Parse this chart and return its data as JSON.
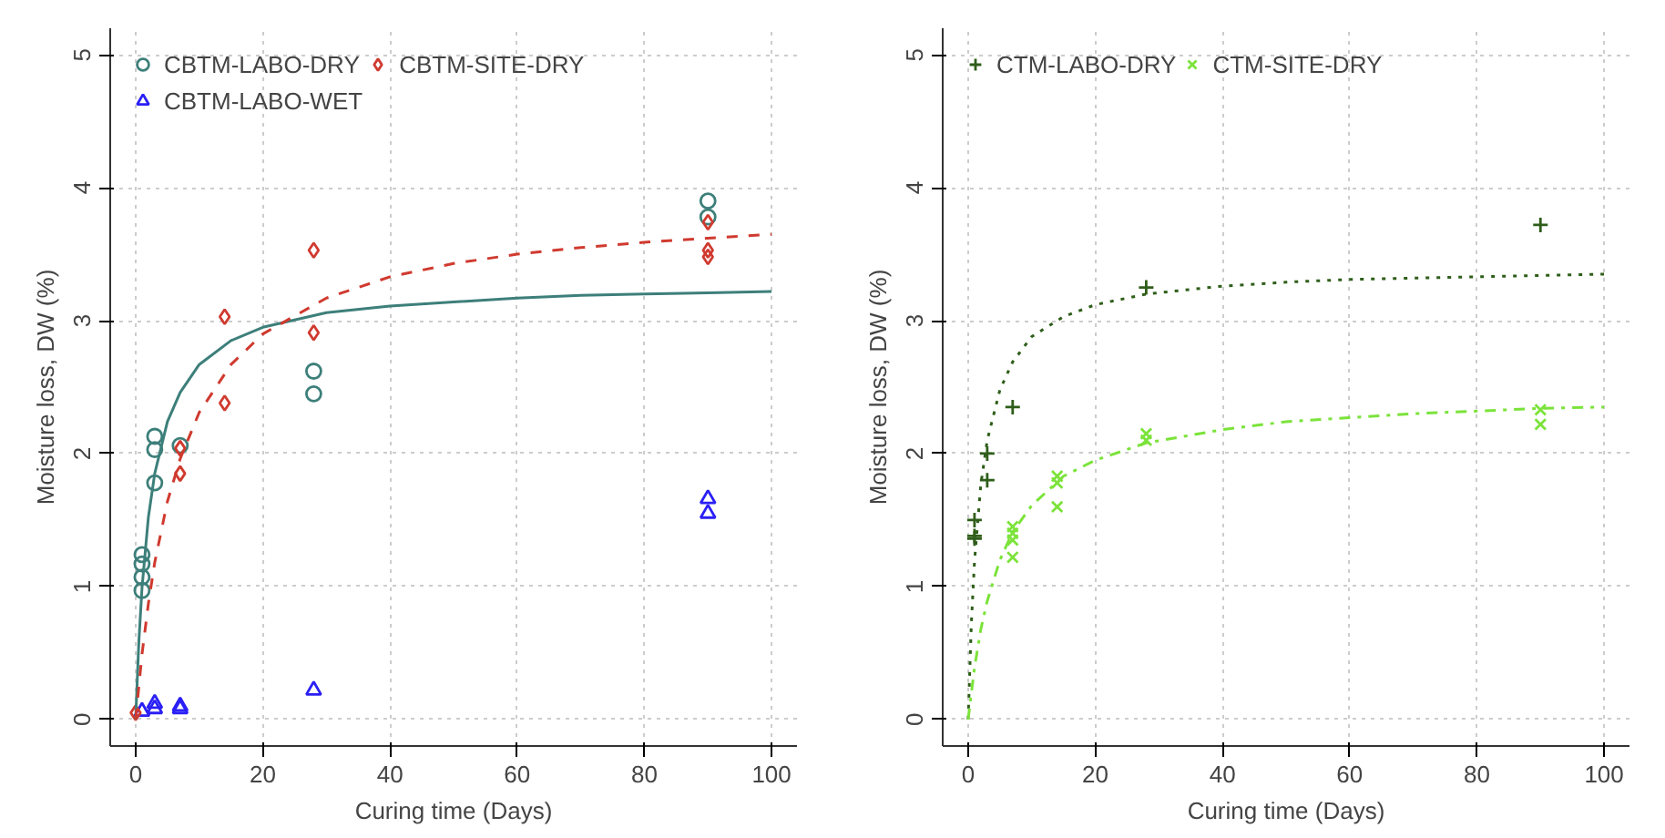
{
  "chart_data": [
    {
      "type": "scatter",
      "xlabel": "Curing time (Days)",
      "ylabel": "Moisture loss, DW (%)",
      "xlim": [
        -4,
        104
      ],
      "ylim": [
        -0.2,
        5.2
      ],
      "xticks": [
        0,
        20,
        40,
        60,
        80,
        100
      ],
      "yticks": [
        0,
        1,
        2,
        3,
        4,
        5
      ],
      "grid": true,
      "legend": "top left",
      "series": [
        {
          "name": "CBTM-LABO-DRY",
          "color": "#3d7f7a",
          "marker": "circle",
          "x": [
            1,
            1,
            1,
            1,
            3,
            3,
            3,
            7,
            28,
            28,
            90,
            90
          ],
          "values": [
            1.24,
            1.17,
            1.07,
            0.97,
            2.13,
            2.03,
            1.78,
            2.06,
            2.62,
            2.45,
            3.9,
            3.78
          ]
        },
        {
          "name": "CBTM-LABO-WET",
          "color": "#2a1ff5",
          "marker": "triangle",
          "x": [
            1,
            3,
            3,
            7,
            7,
            28,
            90,
            90
          ],
          "values": [
            0.06,
            0.12,
            0.08,
            0.1,
            0.08,
            0.22,
            1.66,
            1.55
          ]
        },
        {
          "name": "CBTM-SITE-DRY",
          "color": "#d03a2f",
          "marker": "diamond",
          "x": [
            0,
            7,
            7,
            14,
            14,
            28,
            28,
            90,
            90,
            90
          ],
          "values": [
            0.05,
            2.04,
            1.85,
            3.03,
            2.38,
            3.53,
            2.91,
            3.74,
            3.53,
            3.48
          ]
        },
        {
          "type": "line",
          "color": "#3d7f7a",
          "line_style": "solid",
          "x": [
            0,
            0.5,
            1,
            2,
            3,
            5,
            7,
            10,
            15,
            20,
            30,
            40,
            50,
            60,
            70,
            80,
            90,
            100
          ],
          "values": [
            0,
            0.58,
            0.99,
            1.52,
            1.85,
            2.24,
            2.46,
            2.67,
            2.85,
            2.95,
            3.06,
            3.11,
            3.14,
            3.17,
            3.19,
            3.2,
            3.21,
            3.22
          ]
        },
        {
          "type": "line",
          "color": "#d03a2f",
          "line_style": "dashed",
          "x": [
            0,
            1,
            2,
            3,
            5,
            7,
            10,
            15,
            20,
            30,
            40,
            50,
            60,
            70,
            80,
            90,
            100
          ],
          "values": [
            0,
            0.49,
            0.87,
            1.18,
            1.64,
            1.96,
            2.31,
            2.67,
            2.9,
            3.17,
            3.33,
            3.43,
            3.5,
            3.55,
            3.59,
            3.62,
            3.65
          ]
        }
      ]
    },
    {
      "type": "scatter",
      "xlabel": "Curing time (Days)",
      "ylabel": "Moisture loss, DW (%)",
      "xlim": [
        -4,
        104
      ],
      "ylim": [
        -0.2,
        5.2
      ],
      "xticks": [
        0,
        20,
        40,
        60,
        80,
        100
      ],
      "yticks": [
        0,
        1,
        2,
        3,
        4,
        5
      ],
      "grid": true,
      "legend": "top left",
      "series": [
        {
          "name": "CTM-LABO-DRY",
          "color": "#2f5e1a",
          "marker": "cross",
          "x": [
            1,
            1,
            1,
            3,
            3,
            7,
            28,
            90
          ],
          "values": [
            1.5,
            1.38,
            1.36,
            2.0,
            1.8,
            2.35,
            3.25,
            3.72
          ]
        },
        {
          "name": "CTM-SITE-DRY",
          "color": "#7be33a",
          "marker": "x",
          "x": [
            7,
            7,
            7,
            7,
            14,
            14,
            14,
            28,
            28,
            90,
            90
          ],
          "values": [
            1.45,
            1.4,
            1.35,
            1.22,
            1.83,
            1.78,
            1.6,
            2.15,
            2.1,
            2.33,
            2.22
          ]
        },
        {
          "type": "line",
          "color": "#2f5e1a",
          "line_style": "dotted",
          "x": [
            0,
            0.5,
            1,
            2,
            3,
            5,
            7,
            10,
            15,
            20,
            28,
            40,
            50,
            60,
            70,
            80,
            90,
            100
          ],
          "values": [
            0,
            0.72,
            1.19,
            1.77,
            2.1,
            2.48,
            2.69,
            2.88,
            3.03,
            3.12,
            3.2,
            3.26,
            3.29,
            3.31,
            3.32,
            3.33,
            3.34,
            3.35
          ]
        },
        {
          "type": "line",
          "color": "#7be33a",
          "line_style": "dashdot",
          "x": [
            0,
            1,
            2,
            3,
            5,
            7,
            10,
            15,
            20,
            28,
            40,
            50,
            60,
            70,
            80,
            90,
            100
          ],
          "values": [
            0,
            0.39,
            0.68,
            0.89,
            1.2,
            1.41,
            1.61,
            1.83,
            1.95,
            2.08,
            2.18,
            2.24,
            2.27,
            2.3,
            2.32,
            2.34,
            2.35
          ]
        }
      ]
    }
  ]
}
